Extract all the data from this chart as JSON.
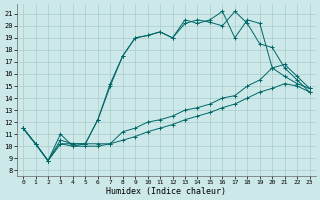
{
  "xlabel": "Humidex (Indice chaleur)",
  "x_ticks": [
    0,
    1,
    2,
    3,
    4,
    5,
    6,
    7,
    8,
    9,
    10,
    11,
    12,
    13,
    14,
    15,
    16,
    17,
    18,
    19,
    20,
    21,
    22,
    23
  ],
  "y_ticks": [
    8,
    9,
    10,
    11,
    12,
    13,
    14,
    15,
    16,
    17,
    18,
    19,
    20,
    21
  ],
  "xlim": [
    -0.5,
    23.5
  ],
  "ylim": [
    7.5,
    21.8
  ],
  "bg_color": "#cce8e8",
  "line_color": "#006666",
  "grid_color": "#aacccc",
  "line1_y": [
    11.5,
    10.2,
    8.8,
    10.2,
    10.2,
    10.2,
    12.2,
    15.2,
    17.5,
    19.0,
    19.2,
    19.5,
    19.0,
    20.2,
    20.5,
    20.3,
    20.0,
    21.2,
    20.2,
    18.5,
    18.2,
    16.5,
    15.5,
    14.5
  ],
  "line2_y": [
    11.5,
    10.2,
    8.8,
    10.5,
    10.2,
    10.2,
    10.2,
    10.2,
    11.2,
    11.5,
    12.0,
    12.2,
    12.5,
    13.0,
    13.2,
    13.5,
    14.0,
    14.2,
    15.0,
    15.5,
    16.5,
    16.8,
    15.8,
    14.8
  ],
  "line3_y": [
    11.5,
    10.2,
    8.8,
    10.2,
    10.0,
    10.0,
    10.0,
    10.2,
    10.5,
    10.8,
    11.2,
    11.5,
    11.8,
    12.2,
    12.5,
    12.8,
    13.2,
    13.5,
    14.0,
    14.5,
    14.8,
    15.2,
    15.0,
    14.5
  ],
  "line4_y": [
    11.5,
    10.2,
    8.8,
    11.0,
    10.0,
    10.2,
    12.2,
    15.0,
    17.5,
    19.0,
    19.2,
    19.5,
    19.0,
    20.5,
    20.2,
    20.5,
    21.2,
    19.0,
    20.5,
    20.2,
    16.5,
    15.8,
    15.2,
    14.8
  ]
}
